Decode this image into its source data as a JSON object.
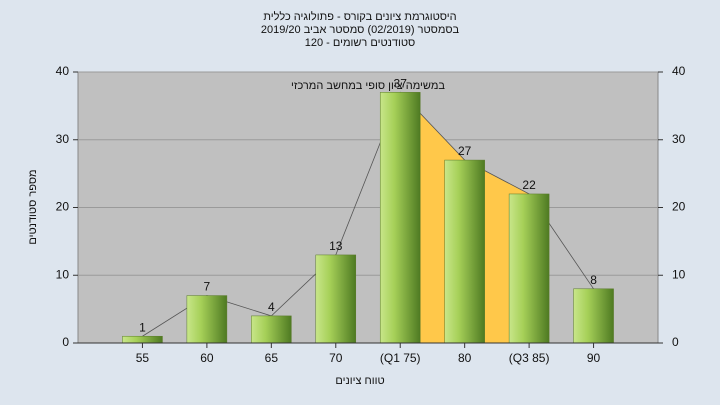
{
  "chart_data": {
    "type": "bar",
    "title": "היסטוגרמת ציונים בקורס - פתולוגיה כללית",
    "subtitle": "בסמסטר  (02/2019)  סמסטר אביב 2019/20",
    "subtitle2": "סטודנטים רשומים - 120",
    "annotation": "במשימה ציון סופי במחשב המרכזי",
    "x_label": "טווח ציונים",
    "y_label": "מספר סטודנטים",
    "categories": [
      "55",
      "60",
      "65",
      "70",
      "(Q1 75)",
      "80",
      "(Q3 85)",
      "90"
    ],
    "values": [
      1,
      7,
      4,
      13,
      37,
      27,
      22,
      8
    ],
    "color": "#9cc84c",
    "ylim": [
      0,
      40
    ],
    "yticks": [
      0,
      10,
      20,
      30,
      40
    ],
    "y2lim": [
      0,
      40
    ],
    "y2ticks": [
      0,
      10,
      20,
      30,
      40
    ],
    "grid": true
  }
}
